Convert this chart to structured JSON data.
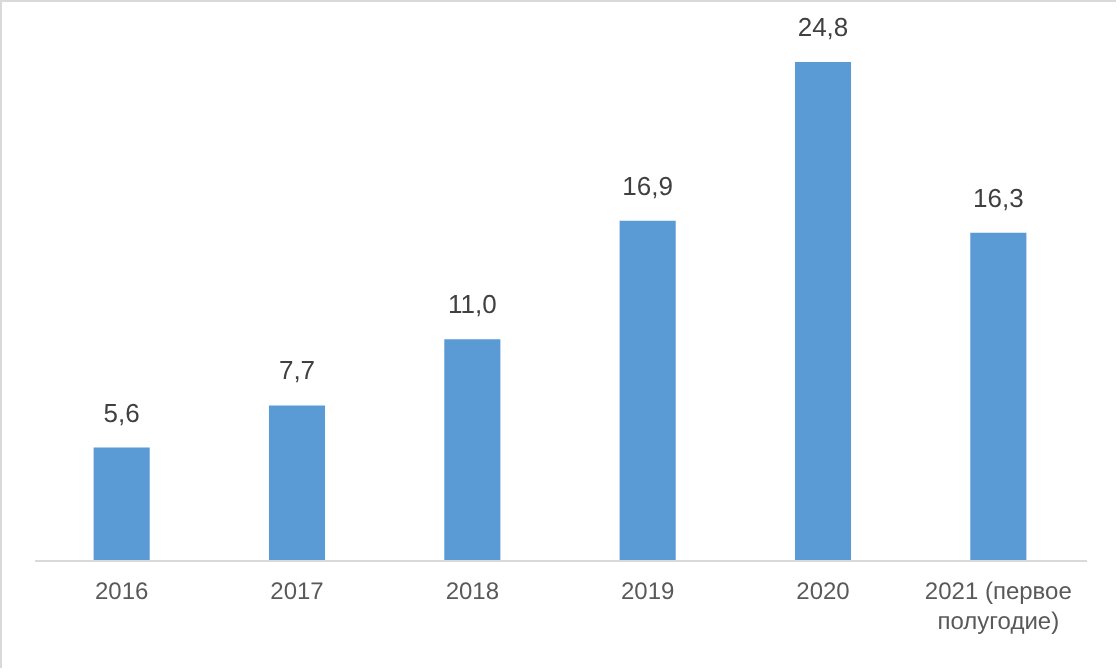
{
  "chart_data": {
    "type": "bar",
    "categories": [
      "2016",
      "2017",
      "2018",
      "2019",
      "2020",
      "2021 (первое полугодие)"
    ],
    "values": [
      5.6,
      7.7,
      11.0,
      16.9,
      24.8,
      16.3
    ],
    "value_labels": [
      "5,6",
      "7,7",
      "11,0",
      "16,9",
      "24,8",
      "16,3"
    ],
    "color": "#5b9bd5",
    "tick_labels": "x"
  }
}
